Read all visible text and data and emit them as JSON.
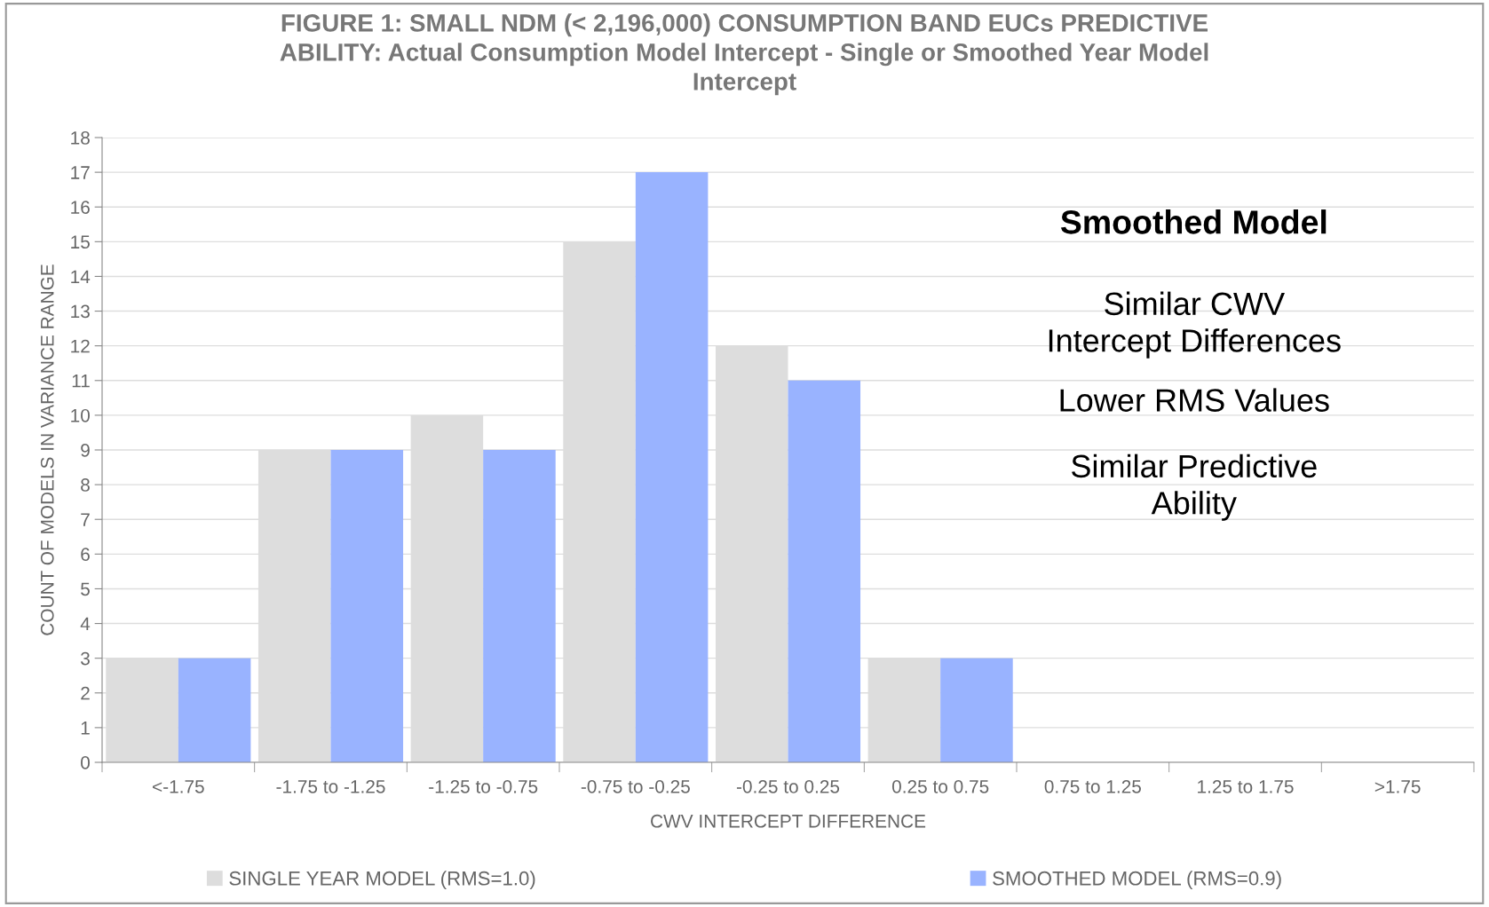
{
  "chart_data": {
    "type": "bar",
    "title": "FIGURE 1: SMALL NDM (< 2,196,000) CONSUMPTION BAND EUCs PREDICTIVE\nABILITY: Actual Consumption Model Intercept - Single or Smoothed Year Model\nIntercept",
    "xlabel": "CWV INTERCEPT DIFFERENCE",
    "ylabel": "COUNT OF MODELS IN VARIANCE RANGE",
    "categories": [
      "<-1.75",
      "-1.75 to -1.25",
      "-1.25 to -0.75",
      "-0.75 to -0.25",
      "-0.25 to 0.25",
      "0.25 to 0.75",
      "0.75 to 1.25",
      "1.25 to 1.75",
      ">1.75"
    ],
    "series": [
      {
        "name": "SINGLE YEAR MODEL (RMS=1.0)",
        "color": "#dddddd",
        "values": [
          3,
          9,
          10,
          15,
          12,
          3,
          0,
          0,
          0
        ]
      },
      {
        "name": "SMOOTHED MODEL (RMS=0.9)",
        "color": "#99b3ff",
        "values": [
          3,
          9,
          9,
          17,
          11,
          3,
          0,
          0,
          0
        ]
      }
    ],
    "ylim": [
      0,
      18
    ],
    "yticks": [
      0,
      1,
      2,
      3,
      4,
      5,
      6,
      7,
      8,
      9,
      10,
      11,
      12,
      13,
      14,
      15,
      16,
      17,
      18
    ],
    "grid": "y",
    "legend": "bottom",
    "annotations": [
      "Smoothed Model",
      "Similar CWV\nIntercept Differences",
      "Lower RMS Values",
      "Similar Predictive\nAbility"
    ]
  }
}
